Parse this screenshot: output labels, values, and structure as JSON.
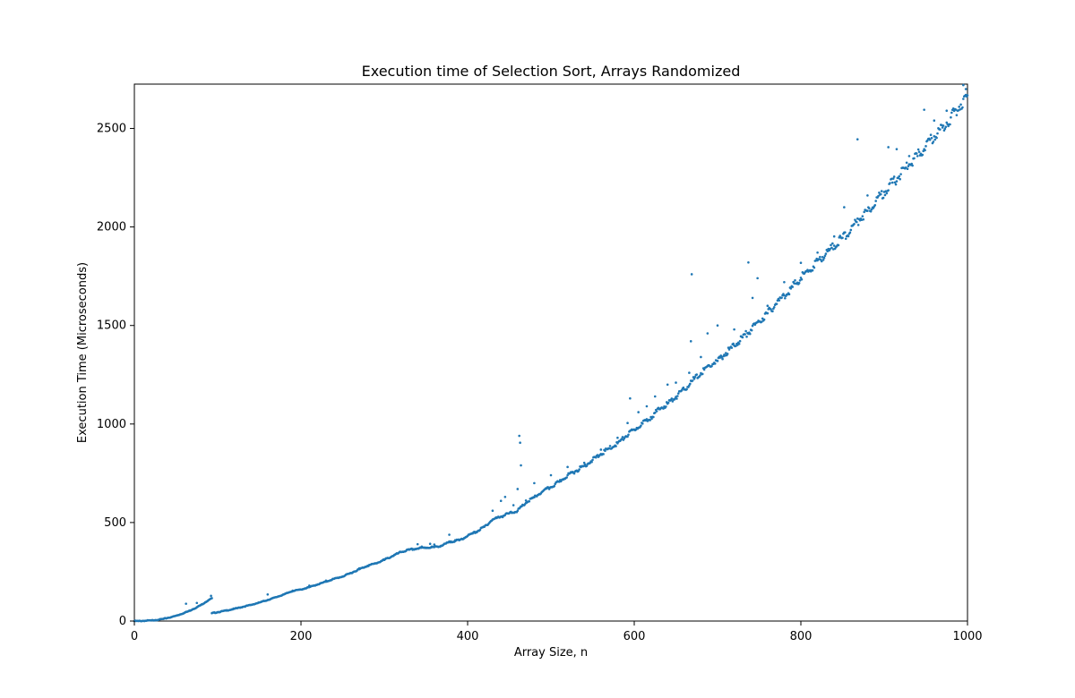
{
  "chart_data": {
    "type": "scatter",
    "title": "Execution time of Selection Sort, Arrays Randomized",
    "xlabel": "Array Size, n",
    "ylabel": "Execution Time (Microseconds)",
    "xlim": [
      0,
      1000
    ],
    "ylim": [
      0,
      2725
    ],
    "xticks": [
      0,
      200,
      400,
      600,
      800,
      1000
    ],
    "yticks": [
      0,
      500,
      1000,
      1500,
      2000,
      2500
    ],
    "grid": false,
    "marker_color": "#1f77b4",
    "series": [
      {
        "name": "",
        "points": [
          [
            0,
            0
          ],
          [
            5,
            0
          ],
          [
            10,
            1
          ],
          [
            15,
            2
          ],
          [
            20,
            3
          ],
          [
            25,
            5
          ],
          [
            30,
            8
          ],
          [
            35,
            11
          ],
          [
            40,
            16
          ],
          [
            45,
            21
          ],
          [
            50,
            27
          ],
          [
            55,
            34
          ],
          [
            60,
            42
          ],
          [
            65,
            50
          ],
          [
            70,
            60
          ],
          [
            75,
            70
          ],
          [
            80,
            82
          ],
          [
            85,
            95
          ],
          [
            90,
            109
          ],
          [
            93,
            116
          ],
          [
            93,
            40
          ],
          [
            100,
            45
          ],
          [
            110,
            53
          ],
          [
            120,
            62
          ],
          [
            130,
            72
          ],
          [
            140,
            82
          ],
          [
            150,
            94
          ],
          [
            160,
            107
          ],
          [
            170,
            121
          ],
          [
            180,
            136
          ],
          [
            190,
            153
          ],
          [
            200,
            160
          ],
          [
            210,
            172
          ],
          [
            220,
            186
          ],
          [
            230,
            200
          ],
          [
            240,
            215
          ],
          [
            250,
            226
          ],
          [
            260,
            244
          ],
          [
            270,
            263
          ],
          [
            280,
            281
          ],
          [
            290,
            293
          ],
          [
            300,
            311
          ],
          [
            310,
            330
          ],
          [
            320,
            350
          ],
          [
            330,
            362
          ],
          [
            340,
            368
          ],
          [
            350,
            373
          ],
          [
            360,
            375
          ],
          [
            370,
            384
          ],
          [
            380,
            404
          ],
          [
            390,
            410
          ],
          [
            400,
            432
          ],
          [
            410,
            452
          ],
          [
            420,
            478
          ],
          [
            430,
            515
          ],
          [
            440,
            530
          ],
          [
            450,
            547
          ],
          [
            460,
            560
          ],
          [
            470,
            600
          ],
          [
            480,
            628
          ],
          [
            490,
            658
          ],
          [
            500,
            680
          ],
          [
            510,
            707
          ],
          [
            520,
            740
          ],
          [
            530,
            762
          ],
          [
            540,
            788
          ],
          [
            550,
            818
          ],
          [
            560,
            848
          ],
          [
            570,
            876
          ],
          [
            580,
            902
          ],
          [
            590,
            938
          ],
          [
            600,
            972
          ],
          [
            610,
            1002
          ],
          [
            620,
            1035
          ],
          [
            630,
            1075
          ],
          [
            640,
            1103
          ],
          [
            650,
            1138
          ],
          [
            660,
            1175
          ],
          [
            670,
            1220
          ],
          [
            680,
            1258
          ],
          [
            690,
            1297
          ],
          [
            700,
            1320
          ],
          [
            710,
            1360
          ],
          [
            720,
            1398
          ],
          [
            730,
            1440
          ],
          [
            740,
            1478
          ],
          [
            750,
            1520
          ],
          [
            760,
            1562
          ],
          [
            770,
            1610
          ],
          [
            780,
            1652
          ],
          [
            790,
            1696
          ],
          [
            800,
            1742
          ],
          [
            810,
            1778
          ],
          [
            820,
            1830
          ],
          [
            830,
            1864
          ],
          [
            840,
            1905
          ],
          [
            850,
            1945
          ],
          [
            860,
            1985
          ],
          [
            870,
            2040
          ],
          [
            880,
            2082
          ],
          [
            890,
            2132
          ],
          [
            900,
            2178
          ],
          [
            910,
            2225
          ],
          [
            920,
            2268
          ],
          [
            930,
            2318
          ],
          [
            940,
            2360
          ],
          [
            950,
            2410
          ],
          [
            960,
            2460
          ],
          [
            970,
            2505
          ],
          [
            980,
            2556
          ],
          [
            990,
            2610
          ],
          [
            1000,
            2668
          ]
        ],
        "outliers": [
          [
            62,
            88
          ],
          [
            75,
            92
          ],
          [
            92,
            128
          ],
          [
            160,
            135
          ],
          [
            190,
            154
          ],
          [
            210,
            180
          ],
          [
            230,
            205
          ],
          [
            250,
            226
          ],
          [
            270,
            268
          ],
          [
            300,
            310
          ],
          [
            340,
            390
          ],
          [
            345,
            378
          ],
          [
            355,
            392
          ],
          [
            360,
            388
          ],
          [
            378,
            438
          ],
          [
            385,
            410
          ],
          [
            430,
            560
          ],
          [
            440,
            610
          ],
          [
            445,
            630
          ],
          [
            455,
            588
          ],
          [
            460,
            670
          ],
          [
            462,
            940
          ],
          [
            463,
            905
          ],
          [
            464,
            790
          ],
          [
            470,
            612
          ],
          [
            480,
            700
          ],
          [
            500,
            740
          ],
          [
            520,
            782
          ],
          [
            540,
            803
          ],
          [
            560,
            870
          ],
          [
            580,
            930
          ],
          [
            592,
            1005
          ],
          [
            595,
            1130
          ],
          [
            605,
            1060
          ],
          [
            615,
            1090
          ],
          [
            625,
            1140
          ],
          [
            640,
            1200
          ],
          [
            650,
            1210
          ],
          [
            666,
            1260
          ],
          [
            668,
            1420
          ],
          [
            669,
            1760
          ],
          [
            680,
            1340
          ],
          [
            688,
            1460
          ],
          [
            700,
            1500
          ],
          [
            720,
            1480
          ],
          [
            737,
            1820
          ],
          [
            742,
            1640
          ],
          [
            748,
            1740
          ],
          [
            760,
            1600
          ],
          [
            780,
            1720
          ],
          [
            800,
            1818
          ],
          [
            820,
            1870
          ],
          [
            840,
            1952
          ],
          [
            852,
            2100
          ],
          [
            868,
            2445
          ],
          [
            880,
            2160
          ],
          [
            905,
            2405
          ],
          [
            915,
            2395
          ],
          [
            930,
            2360
          ],
          [
            948,
            2595
          ],
          [
            960,
            2540
          ],
          [
            975,
            2590
          ],
          [
            995,
            2720
          ],
          [
            998,
            2700
          ]
        ]
      }
    ]
  }
}
